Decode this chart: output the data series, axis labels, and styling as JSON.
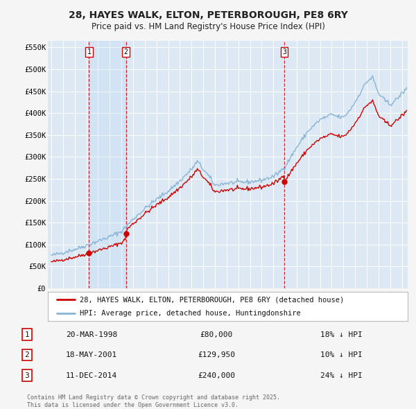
{
  "title": "28, HAYES WALK, ELTON, PETERBOROUGH, PE8 6RY",
  "subtitle": "Price paid vs. HM Land Registry's House Price Index (HPI)",
  "fig_bg_color": "#f5f5f5",
  "plot_bg_color": "#dce9f5",
  "grid_color": "#ffffff",
  "red_line_color": "#cc0000",
  "blue_line_color": "#8ab4d4",
  "purchases": [
    {
      "num": 1,
      "date": "20-MAR-1998",
      "price": 80000,
      "price_str": "£80,000",
      "pct": "18% ↓ HPI",
      "x_year": 1998.22
    },
    {
      "num": 2,
      "date": "18-MAY-2001",
      "price": 129950,
      "price_str": "£129,950",
      "pct": "10% ↓ HPI",
      "x_year": 2001.38
    },
    {
      "num": 3,
      "date": "11-DEC-2014",
      "price": 240000,
      "price_str": "£240,000",
      "pct": "24% ↓ HPI",
      "x_year": 2014.94
    }
  ],
  "legend_red": "28, HAYES WALK, ELTON, PETERBOROUGH, PE8 6RY (detached house)",
  "legend_blue": "HPI: Average price, detached house, Huntingdonshire",
  "footer": "Contains HM Land Registry data © Crown copyright and database right 2025.\nThis data is licensed under the Open Government Licence v3.0.",
  "ylim": [
    0,
    565000
  ],
  "xlim_start": 1994.7,
  "xlim_end": 2025.5,
  "yticks": [
    0,
    50000,
    100000,
    150000,
    200000,
    250000,
    300000,
    350000,
    400000,
    450000,
    500000,
    550000
  ],
  "ytick_labels": [
    "£0",
    "£50K",
    "£100K",
    "£150K",
    "£200K",
    "£250K",
    "£300K",
    "£350K",
    "£400K",
    "£450K",
    "£500K",
    "£550K"
  ],
  "xticks": [
    1995,
    1996,
    1997,
    1998,
    1999,
    2000,
    2001,
    2002,
    2003,
    2004,
    2005,
    2006,
    2007,
    2008,
    2009,
    2010,
    2011,
    2012,
    2013,
    2014,
    2015,
    2016,
    2017,
    2018,
    2019,
    2020,
    2021,
    2022,
    2023,
    2024,
    2025
  ]
}
